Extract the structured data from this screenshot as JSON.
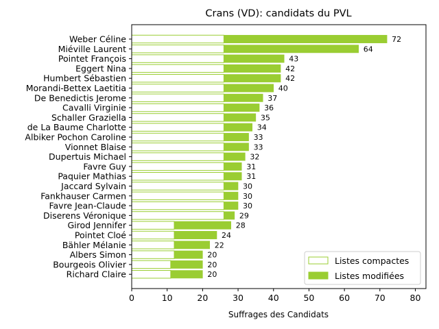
{
  "chart_data": {
    "type": "bar",
    "orientation": "horizontal",
    "stacked": true,
    "title": "Crans (VD): candidats du PVL",
    "xlabel": "Suffrages des Candidats",
    "ylabel": "",
    "xlim": [
      0,
      83
    ],
    "xticks": [
      "0",
      "10",
      "20",
      "30",
      "40",
      "50",
      "60",
      "70",
      "80"
    ],
    "grid": false,
    "legend_position": "bottom-right",
    "colors": {
      "compact_fill": "#ffffff",
      "compact_edge": "#9acd32",
      "modified": "#9acd32"
    },
    "categories": [
      "Weber Céline",
      "Miéville Laurent",
      "Pointet François",
      "Eggert Nina",
      "Humbert Sébastien",
      "Morandi-Bettex Laetitia",
      "De Benedictis Jerome",
      "Cavalli Virginie",
      "Schaller Graziella",
      "de La Baume Charlotte",
      "Albiker Pochon Caroline",
      "Vionnet Blaise",
      "Dupertuis Michael",
      "Favre Guy",
      "Paquier Mathias",
      "Jaccard Sylvain",
      "Fankhauser Carmen",
      "Favre Jean-Claude",
      "Diserens Véronique",
      "Girod Jennifer",
      "Pointet Cloé",
      "Bähler Mélanie",
      "Albers Simon",
      "Bourgeois Olivier",
      "Richard Claire"
    ],
    "series": [
      {
        "name": "Listes compactes",
        "values": [
          26,
          26,
          26,
          26,
          26,
          26,
          26,
          26,
          26,
          26,
          26,
          26,
          26,
          26,
          26,
          26,
          26,
          26,
          26,
          12,
          12,
          12,
          12,
          11,
          11
        ]
      },
      {
        "name": "Listes modifiées",
        "values": [
          46,
          38,
          17,
          16,
          16,
          14,
          11,
          10,
          9,
          8,
          7,
          7,
          6,
          5,
          5,
          4,
          4,
          4,
          3,
          16,
          12,
          10,
          8,
          9,
          9
        ]
      }
    ],
    "totals": [
      72,
      64,
      43,
      42,
      42,
      40,
      37,
      36,
      35,
      34,
      33,
      33,
      32,
      31,
      31,
      30,
      30,
      30,
      29,
      28,
      24,
      22,
      20,
      20,
      20
    ]
  }
}
